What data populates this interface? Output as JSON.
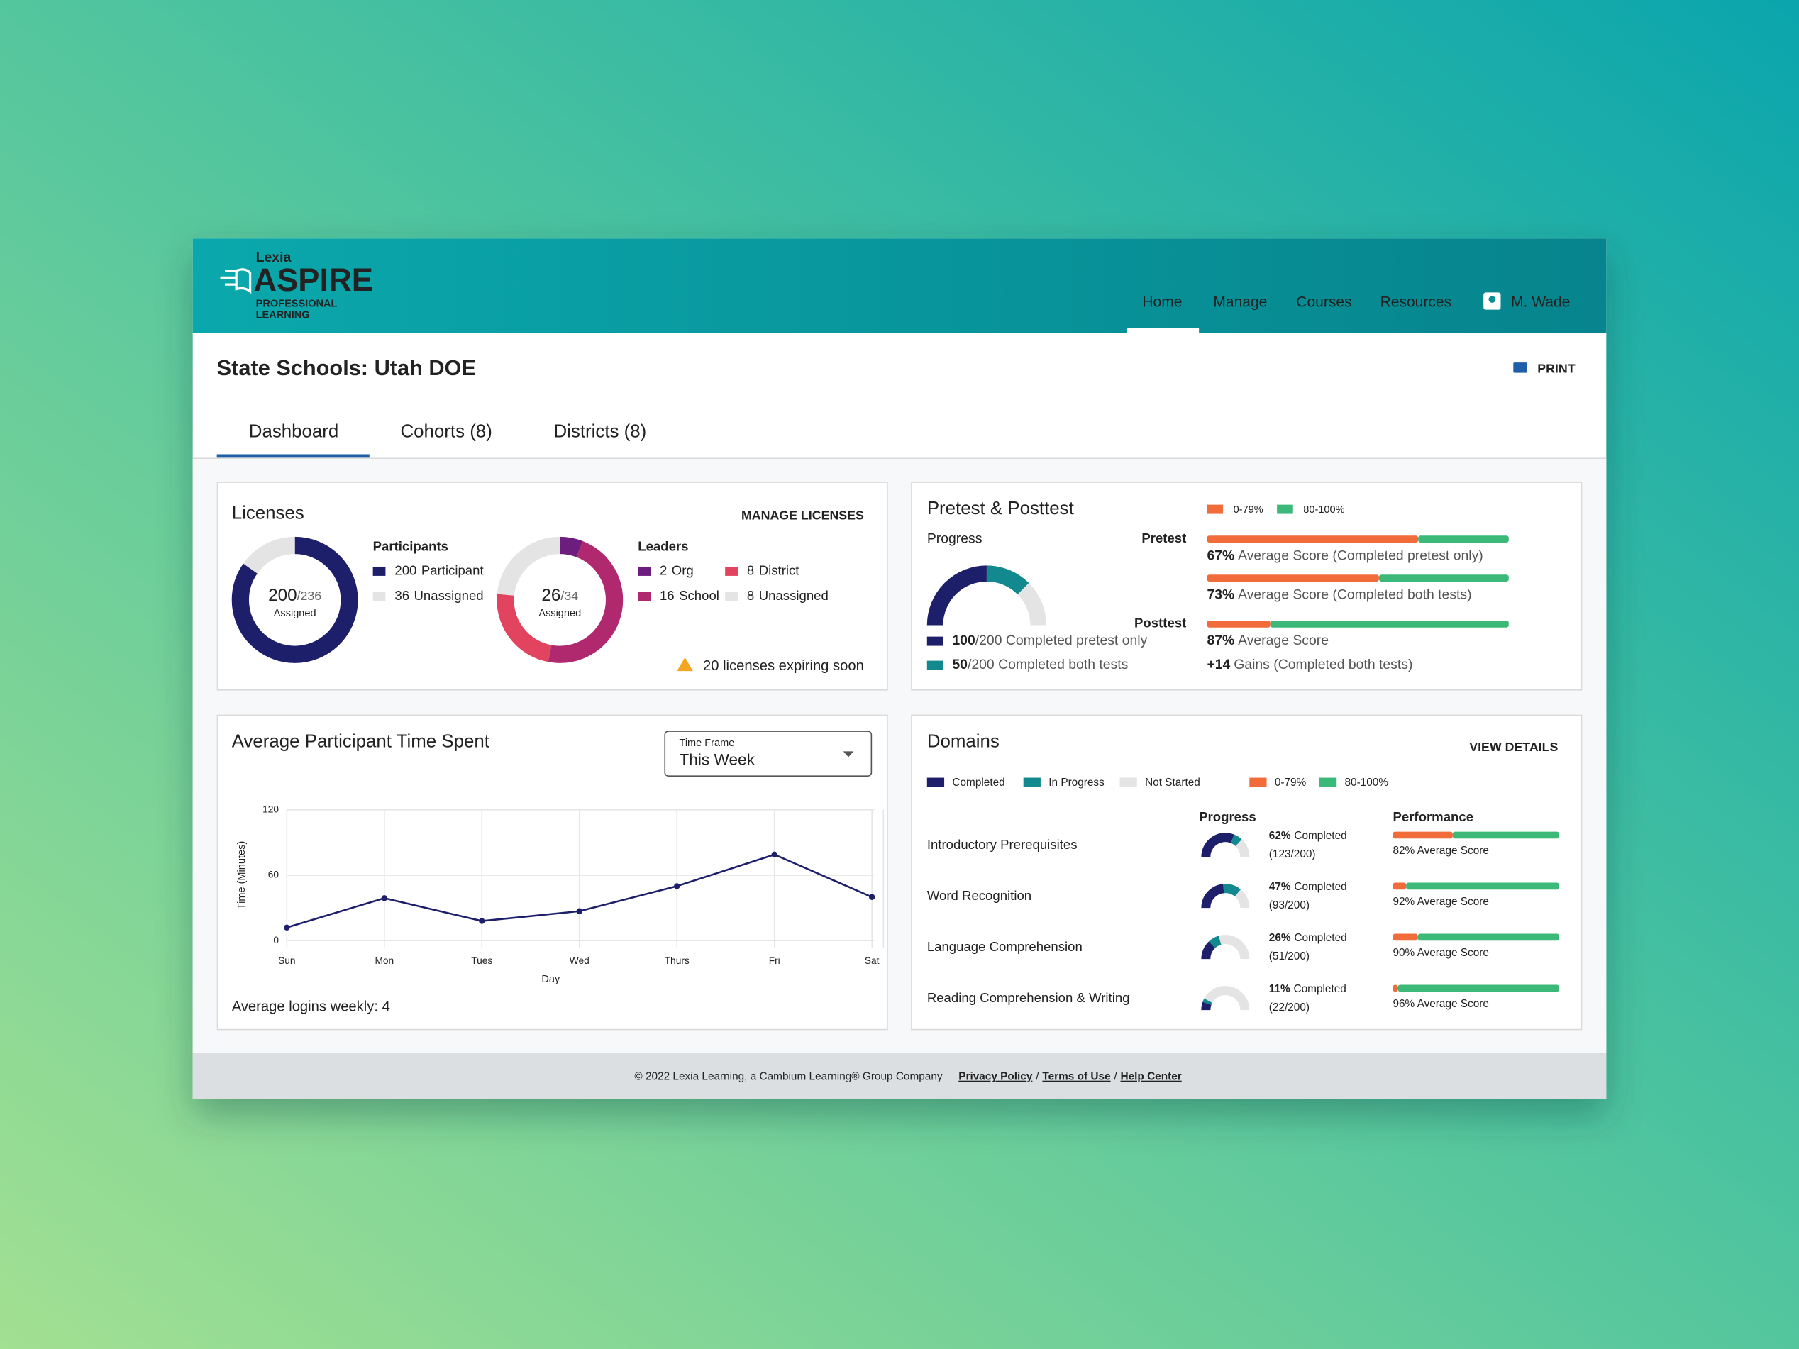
{
  "header": {
    "brand": {
      "company": "Lexia",
      "product": "ASPIRE",
      "tagline": [
        "PROFESSIONAL",
        "LEARNING"
      ]
    },
    "nav": [
      "Home",
      "Manage",
      "Courses",
      "Resources"
    ],
    "active_nav": 0,
    "user": "M. Wade"
  },
  "page": {
    "title": "State Schools: Utah DOE",
    "print": "PRINT",
    "tabs": [
      "Dashboard",
      "Cohorts (8)",
      "Districts (8)"
    ],
    "active_tab": 0
  },
  "licenses": {
    "title": "Licenses",
    "action": "MANAGE LICENSES",
    "participants": {
      "heading": "Participants",
      "assigned": 200,
      "total_label": "/236",
      "caption": "Assigned",
      "segments": [
        {
          "count": 200,
          "label": "Participant",
          "color": "#1e1f6b"
        },
        {
          "count": 36,
          "label": "Unassigned",
          "color": "#e4e4e4"
        }
      ]
    },
    "leaders": {
      "heading": "Leaders",
      "assigned": 26,
      "total_label": "/34",
      "caption": "Assigned",
      "segments": [
        {
          "count": 2,
          "label": "Org",
          "color": "#6c1d7d"
        },
        {
          "count": 16,
          "label": "School",
          "color": "#b0286e"
        },
        {
          "count": 8,
          "label": "District",
          "color": "#e2435e"
        },
        {
          "count": 8,
          "label": "Unassigned",
          "color": "#e4e4e4"
        }
      ]
    },
    "warning": "20 licenses expiring soon"
  },
  "pretest": {
    "title": "Pretest & Posttest",
    "legend": [
      {
        "label": "0-79%",
        "color": "#f26b3a"
      },
      {
        "label": "80-100%",
        "color": "#3cb878"
      }
    ],
    "progress_title": "Progress",
    "progress_total": 200,
    "progress": [
      {
        "count": 100,
        "suffix": "/200 Completed pretest only",
        "color": "#1e1f6b"
      },
      {
        "count": 50,
        "suffix": "/200 Completed both tests",
        "color": "#12898f"
      }
    ],
    "tests": [
      {
        "name": "Pretest",
        "results": [
          {
            "low_share": 70,
            "score": "67%",
            "text": "Average Score (Completed pretest only)"
          },
          {
            "low_share": 57,
            "score": "73%",
            "text": "Average Score (Completed both tests)"
          }
        ]
      },
      {
        "name": "Posttest",
        "results": [
          {
            "low_share": 21,
            "score": "87%",
            "text": "Average Score"
          }
        ]
      }
    ],
    "gains": {
      "value": "+14",
      "text": "Gains (Completed both tests)"
    }
  },
  "time_spent": {
    "title": "Average Participant Time Spent",
    "timeframe": {
      "label": "Time Frame",
      "value": "This Week"
    },
    "chart": {
      "type": "line",
      "categories": [
        "Sun",
        "Mon",
        "Tues",
        "Wed",
        "Thurs",
        "Fri",
        "Sat"
      ],
      "values": [
        12,
        39,
        18,
        27,
        50,
        79,
        40
      ],
      "color": "#1e1f6b",
      "ylim": [
        0,
        120
      ],
      "yticks": [
        0,
        60,
        120
      ],
      "y_label": "Time (Minutes)",
      "x_label": "Day",
      "grid": true
    },
    "note": "Average logins weekly: 4"
  },
  "domains": {
    "title": "Domains",
    "action": "VIEW DETAILS",
    "legend": [
      {
        "label": "Completed",
        "color": "#1e1f6b"
      },
      {
        "label": "In Progress",
        "color": "#12898f"
      },
      {
        "label": "Not Started",
        "color": "#e4e4e4"
      },
      {
        "label": "0-79%",
        "color": "#f26b3a"
      },
      {
        "label": "80-100%",
        "color": "#3cb878"
      }
    ],
    "headers": [
      "Progress",
      "Performance"
    ],
    "rows": [
      {
        "name": "Introductory Prerequisites",
        "completed": 62,
        "in_progress": 12,
        "pct_label": "62%",
        "status": "Completed",
        "detail": "(123/200)",
        "low_share": 36,
        "score": "82% Average Score"
      },
      {
        "name": "Word Recognition",
        "completed": 47,
        "in_progress": 25,
        "pct_label": "47%",
        "status": "Completed",
        "detail": "(93/200)",
        "low_share": 8,
        "score": "92% Average Score"
      },
      {
        "name": "Language Comprehension",
        "completed": 26,
        "in_progress": 15,
        "pct_label": "26%",
        "status": "Completed",
        "detail": "(51/200)",
        "low_share": 15,
        "score": "90% Average Score"
      },
      {
        "name": "Reading Comprehension & Writing",
        "completed": 11,
        "in_progress": 5,
        "pct_label": "11%",
        "status": "Completed",
        "detail": "(22/200)",
        "low_share": 3,
        "score": "96% Average Score"
      }
    ]
  },
  "footer": {
    "copyright": "© 2022 Lexia Learning, a Cambium Learning® Group Company",
    "links": [
      "Privacy Policy",
      "Terms of Use",
      "Help Center"
    ],
    "separator": "/"
  }
}
